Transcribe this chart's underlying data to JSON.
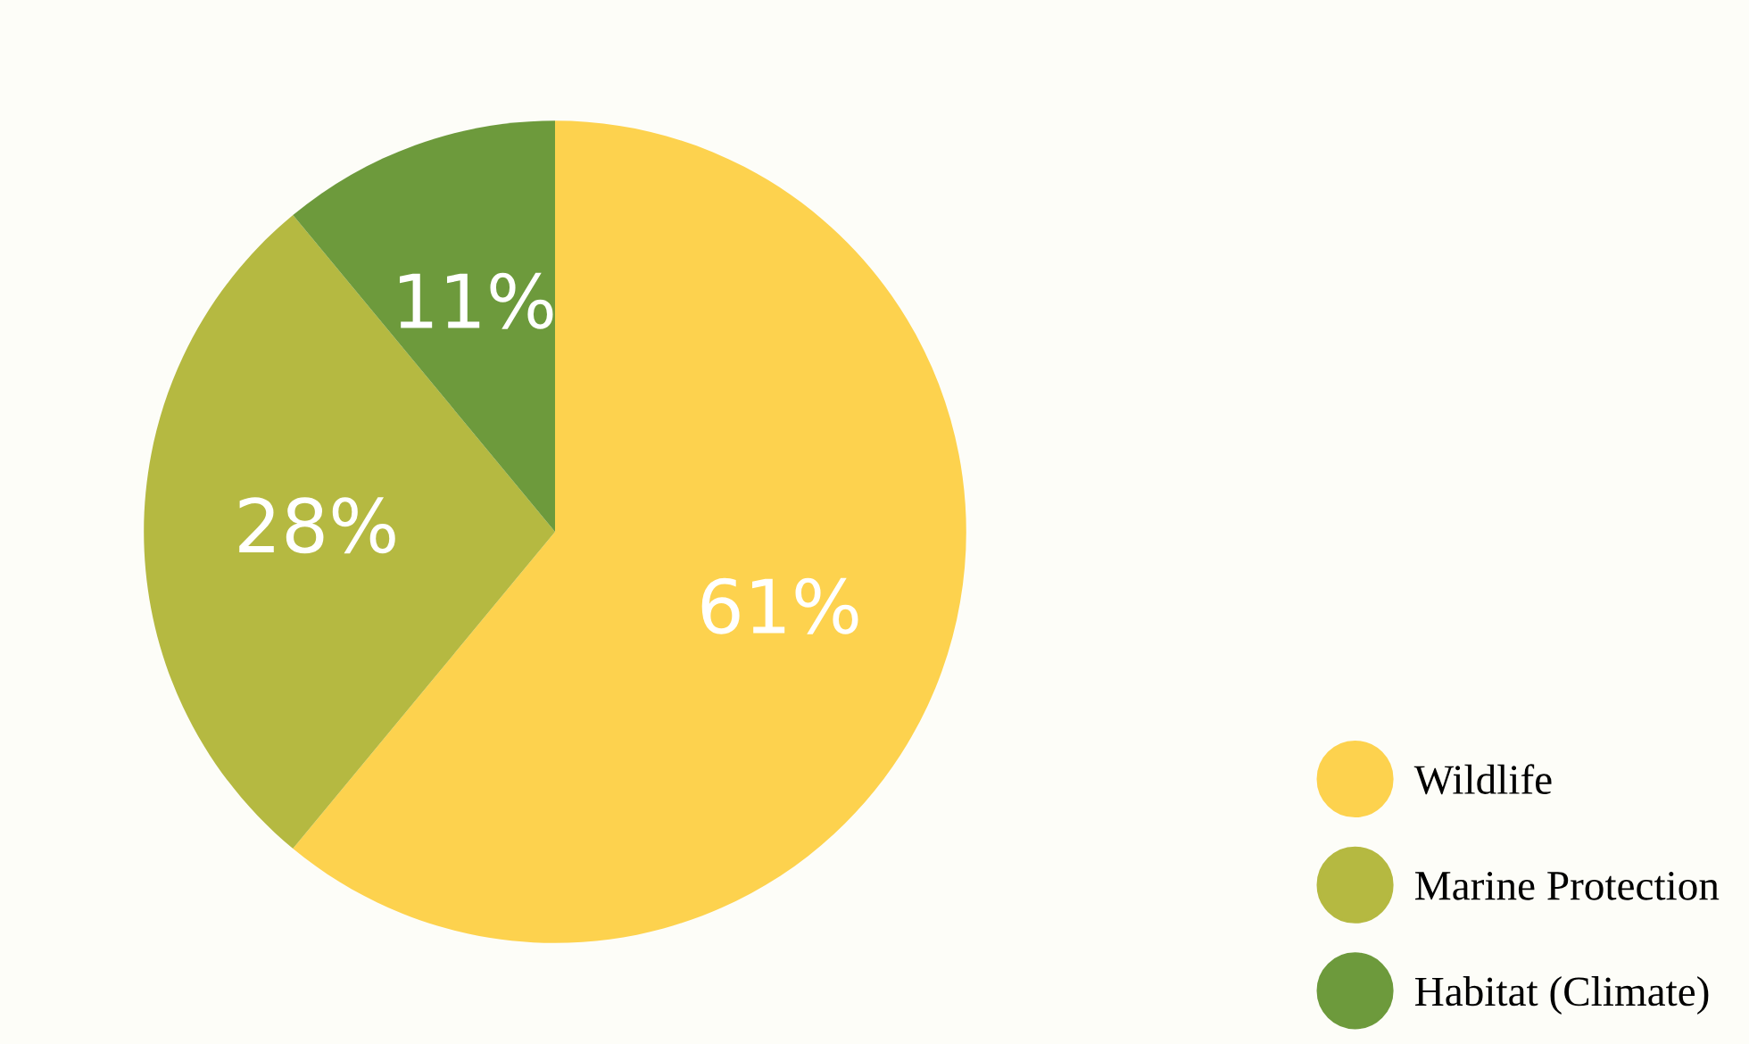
{
  "chart_data": {
    "type": "pie",
    "categories": [
      "Wildlife",
      "Marine Protection",
      "Habitat (Climate)"
    ],
    "values": [
      61,
      28,
      11
    ],
    "colors": [
      "#fdd24e",
      "#b5b941",
      "#6d9a3c"
    ],
    "value_labels": [
      "61%",
      "28%",
      "11%"
    ],
    "legend": "bottom right"
  }
}
